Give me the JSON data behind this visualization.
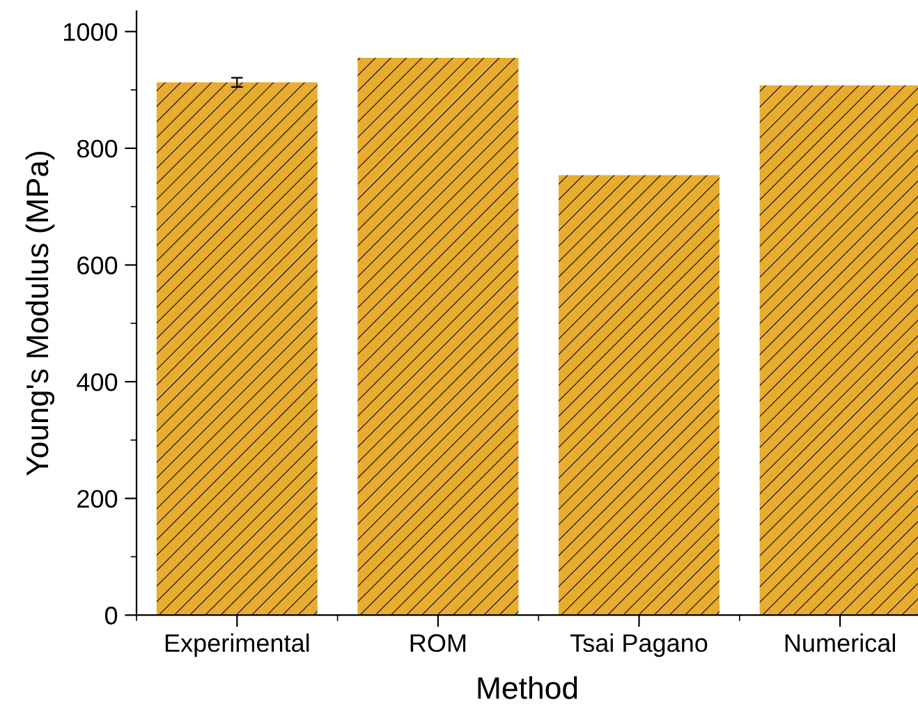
{
  "chart_data": {
    "type": "bar",
    "xlabel": "Method",
    "ylabel": "Young's Modulus (MPa)",
    "categories": [
      "Experimental",
      "ROM",
      "Tsai Pagano",
      "Numerical"
    ],
    "values": [
      913,
      955,
      754,
      908
    ],
    "errors": [
      8,
      null,
      null,
      null
    ],
    "color": "#e8ac2e",
    "ylim": [
      0,
      1035
    ],
    "yticks": [
      0,
      200,
      400,
      600,
      800,
      1000
    ],
    "grid": false
  }
}
